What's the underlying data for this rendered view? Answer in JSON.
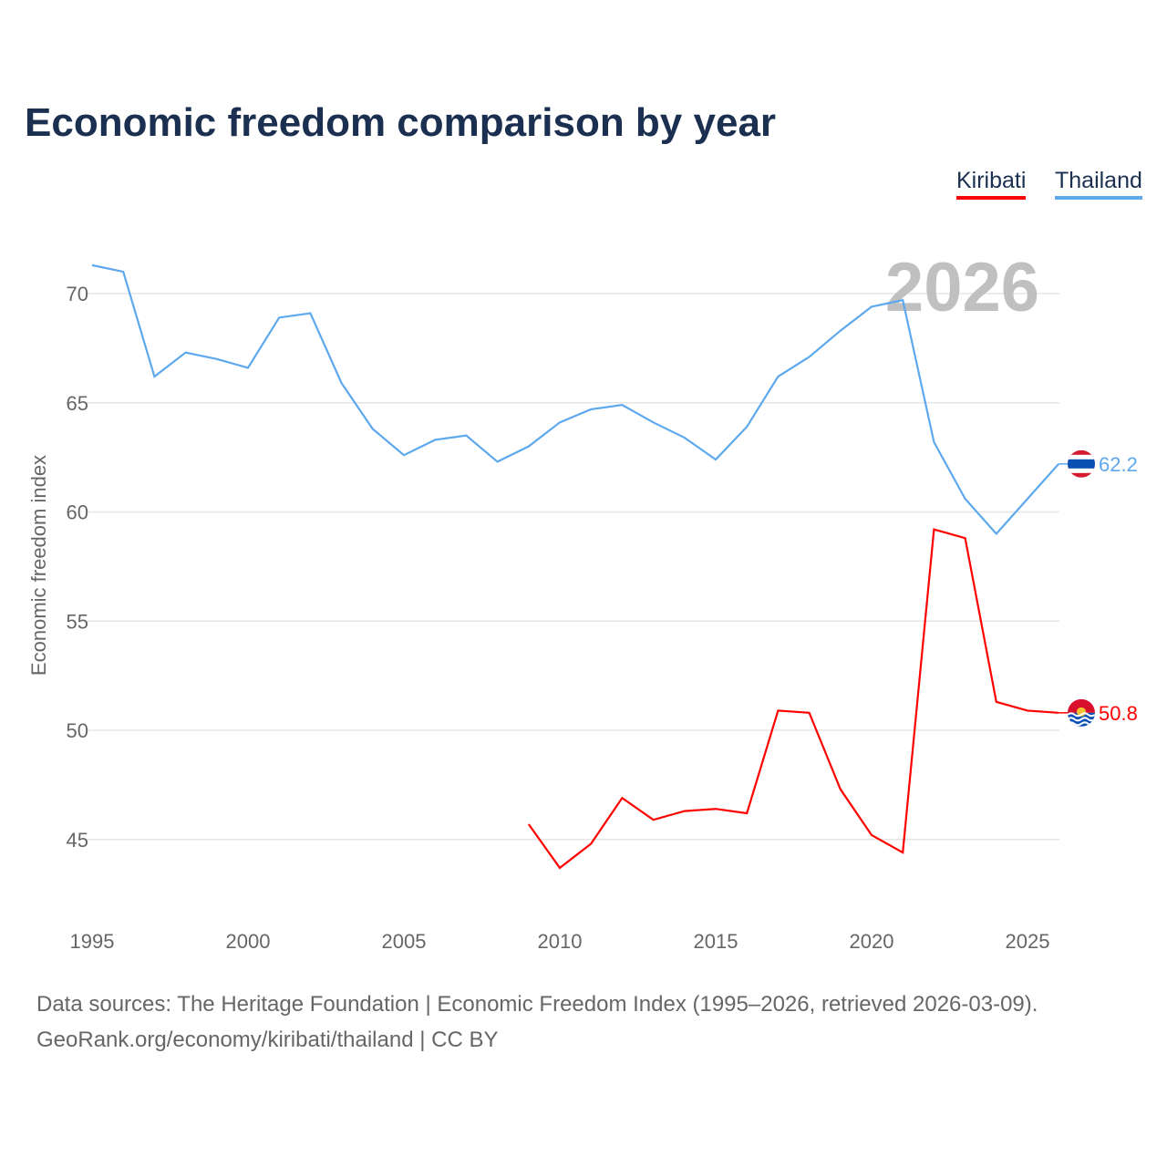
{
  "title": "Economic freedom comparison by year",
  "source_line1": "Data sources: The Heritage Foundation | Economic Freedom Index (1995–2026, retrieved 2026-03-09).",
  "source_line2": "GeoRank.org/economy/kiribati/thailand | CC BY",
  "chart_data": {
    "type": "line",
    "title": "Economic freedom comparison by year",
    "xlabel": "",
    "ylabel": "Economic freedom index",
    "xlim": [
      1995,
      2026
    ],
    "ylim": [
      41.5,
      72.5
    ],
    "xticks": [
      1995,
      2000,
      2005,
      2010,
      2015,
      2020,
      2025
    ],
    "yticks": [
      45,
      50,
      55,
      60,
      65,
      70
    ],
    "grid": true,
    "legend_placement": "top-right",
    "watermark_year": "2026",
    "series": [
      {
        "name": "Kiribati",
        "color": "#ff0000",
        "end_label": "50.8",
        "x": [
          2009,
          2010,
          2011,
          2012,
          2013,
          2014,
          2015,
          2016,
          2017,
          2018,
          2019,
          2020,
          2021,
          2022,
          2023,
          2024,
          2025,
          2026
        ],
        "values": [
          45.7,
          43.7,
          44.8,
          46.9,
          45.9,
          46.3,
          46.4,
          46.2,
          50.9,
          50.8,
          47.3,
          45.2,
          44.4,
          59.2,
          58.8,
          51.3,
          50.9,
          50.8
        ]
      },
      {
        "name": "Thailand",
        "color": "#5ea8ee",
        "end_label": "62.2",
        "x": [
          1995,
          1996,
          1997,
          1998,
          1999,
          2000,
          2001,
          2002,
          2003,
          2004,
          2005,
          2006,
          2007,
          2008,
          2009,
          2010,
          2011,
          2012,
          2013,
          2014,
          2015,
          2016,
          2017,
          2018,
          2019,
          2020,
          2021,
          2022,
          2023,
          2024,
          2025,
          2026
        ],
        "values": [
          71.3,
          71.0,
          66.2,
          67.3,
          67.0,
          66.6,
          68.9,
          69.1,
          65.9,
          63.8,
          62.6,
          63.3,
          63.5,
          62.3,
          63.0,
          64.1,
          64.7,
          64.9,
          64.1,
          63.4,
          62.4,
          63.9,
          66.2,
          67.1,
          68.3,
          69.4,
          69.7,
          63.2,
          60.6,
          59.0,
          60.6,
          62.2
        ]
      }
    ]
  }
}
